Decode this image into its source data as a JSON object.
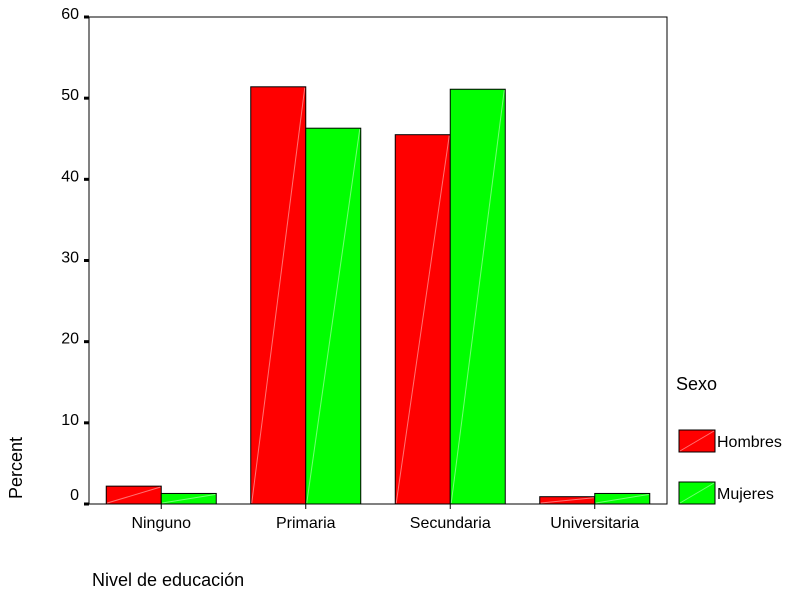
{
  "chart_data": {
    "type": "bar",
    "title": "",
    "xlabel": "Nivel de educación",
    "ylabel": "Percent",
    "ylim": [
      0,
      60
    ],
    "yticks": [
      0,
      10,
      20,
      30,
      40,
      50,
      60
    ],
    "categories": [
      "Ninguno",
      "Primaria",
      "Secundaria",
      "Universitaria"
    ],
    "series": [
      {
        "name": "Hombres",
        "values": [
          2.2,
          51.4,
          45.5,
          0.9
        ],
        "color": "#ff0000"
      },
      {
        "name": "Mujeres",
        "values": [
          1.3,
          46.3,
          51.1,
          1.3
        ],
        "color": "#00ff00"
      }
    ],
    "legend": {
      "title": "Sexo",
      "position": "right"
    },
    "grid": false
  }
}
